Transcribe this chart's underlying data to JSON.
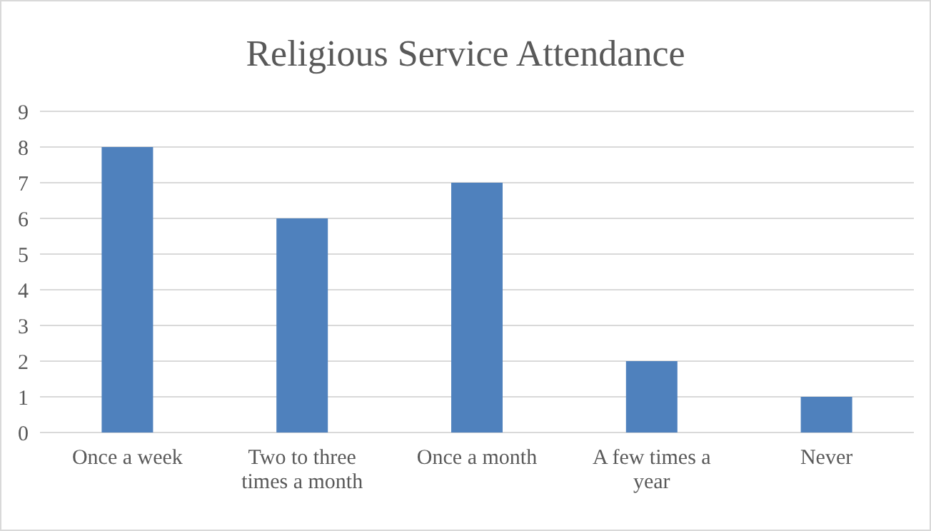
{
  "chart_data": {
    "type": "bar",
    "title": "Religious Service Attendance",
    "categories": [
      "Once a week",
      "Two to three times a month",
      "Once a month",
      "A few times a year",
      "Never"
    ],
    "values": [
      8,
      6,
      7,
      2,
      1
    ],
    "color": "#4f81bd",
    "ylim": [
      0,
      9
    ],
    "yticks": [
      0,
      1,
      2,
      3,
      4,
      5,
      6,
      7,
      8,
      9
    ],
    "grid": "y"
  }
}
